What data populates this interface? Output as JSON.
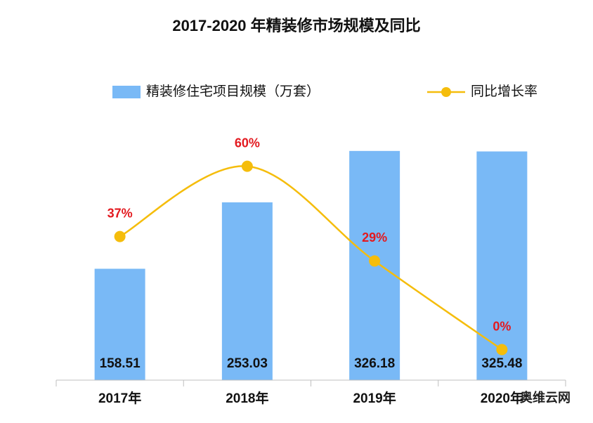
{
  "chart_data": {
    "type": "bar",
    "title": "2017-2020 年精装修市场规模及同比",
    "categories": [
      "2017年",
      "2018年",
      "2019年",
      "2020年"
    ],
    "series": [
      {
        "name": "精装修住宅项目规模（万套）",
        "color": "#79b9f6",
        "values": [
          158.51,
          253.03,
          326.18,
          325.48
        ]
      },
      {
        "name": "同比增长率",
        "type": "line",
        "axis": "y2",
        "color": "#f5bd0c",
        "values": [
          37,
          60,
          29,
          0
        ],
        "value_labels": [
          "37%",
          "60%",
          "29%",
          "0%"
        ],
        "label_color": "#e3191f"
      }
    ],
    "ylim": [
      0,
      400
    ],
    "y2lim": [
      -10,
      82
    ],
    "legend": "top",
    "smooth": true,
    "source_mark": "奥维云网"
  }
}
